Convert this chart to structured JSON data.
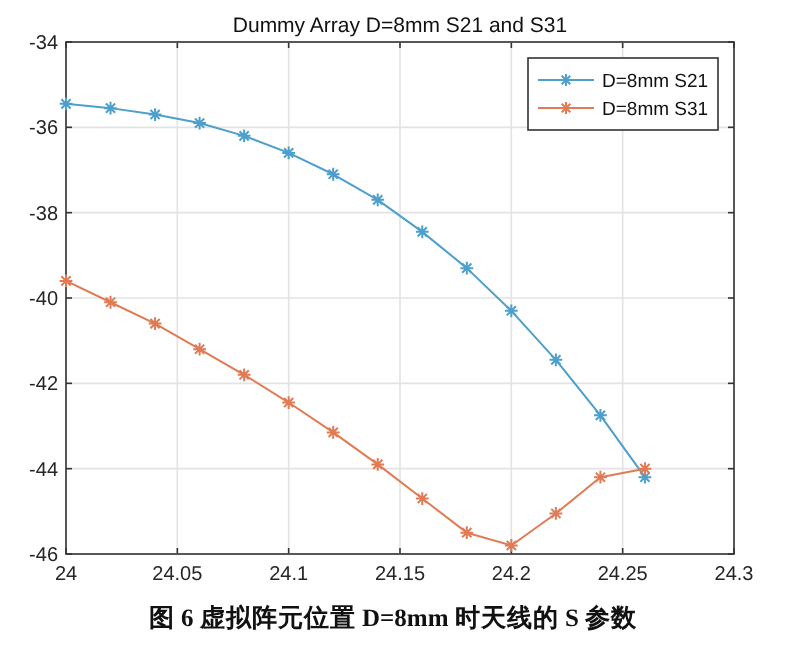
{
  "chart_data": {
    "type": "line",
    "title": "Dummy Array D=8mm S21 and S31",
    "x": [
      24,
      24.02,
      24.04,
      24.06,
      24.08,
      24.1,
      24.12,
      24.14,
      24.16,
      24.18,
      24.2,
      24.22,
      24.24,
      24.26
    ],
    "series": [
      {
        "name": "D=8mm S21",
        "color": "#4d9fcc",
        "values": [
          -35.45,
          -35.55,
          -35.7,
          -35.9,
          -36.2,
          -36.6,
          -37.1,
          -37.7,
          -38.45,
          -39.3,
          -40.3,
          -41.45,
          -42.75,
          -44.2
        ]
      },
      {
        "name": "D=8mm S31",
        "color": "#e07b54",
        "values": [
          -39.6,
          -40.1,
          -40.6,
          -41.2,
          -41.8,
          -42.45,
          -43.15,
          -43.9,
          -44.7,
          -45.5,
          -45.8,
          -45.05,
          -44.2,
          -44.0
        ]
      }
    ],
    "xlim": [
      24,
      24.3
    ],
    "xticks": [
      24,
      24.05,
      24.1,
      24.15,
      24.2,
      24.25,
      24.3
    ],
    "ylim": [
      -46,
      -34
    ],
    "yticks": [
      -46,
      -44,
      -42,
      -40,
      -38,
      -36,
      -34
    ],
    "grid": true,
    "legend": "top right",
    "marker": "cross",
    "annotations": [
      "图 6  虚拟阵元位置 D=8mm 时天线的 S 参数"
    ]
  }
}
